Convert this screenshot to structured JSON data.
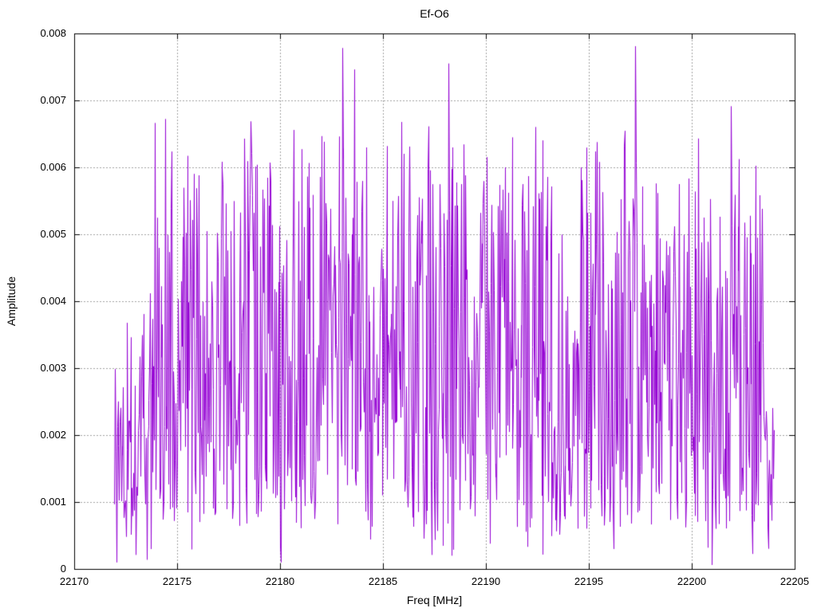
{
  "chart_data": {
    "type": "line",
    "style": "noisy-spectrum-trace",
    "title": "Ef-O6",
    "xlabel": "Freq [MHz]",
    "ylabel": "Amplitude",
    "xlim": [
      22170,
      22205
    ],
    "ylim": [
      0,
      0.008
    ],
    "grid": true,
    "legend": "none",
    "colors": {
      "series": "#9400d3",
      "grid": "#a0a0a0",
      "axis": "#000000",
      "background": "#ffffff"
    },
    "x_ticks": [
      {
        "v": 22170,
        "label": "22170"
      },
      {
        "v": 22175,
        "label": "22175"
      },
      {
        "v": 22180,
        "label": "22180"
      },
      {
        "v": 22185,
        "label": "22185"
      },
      {
        "v": 22190,
        "label": "22190"
      },
      {
        "v": 22195,
        "label": "22195"
      },
      {
        "v": 22200,
        "label": "22200"
      },
      {
        "v": 22205,
        "label": "22205"
      }
    ],
    "y_ticks": [
      {
        "v": 0,
        "label": "0"
      },
      {
        "v": 0.001,
        "label": "0.001"
      },
      {
        "v": 0.002,
        "label": "0.002"
      },
      {
        "v": 0.003,
        "label": "0.003"
      },
      {
        "v": 0.004,
        "label": "0.004"
      },
      {
        "v": 0.005,
        "label": "0.005"
      },
      {
        "v": 0.006,
        "label": "0.006"
      },
      {
        "v": 0.007,
        "label": "0.007"
      },
      {
        "v": 0.008,
        "label": "0.008"
      }
    ],
    "data_x_range": [
      22171.95,
      22204.0
    ],
    "peaks": [
      [
        22173.9,
        0.00666
      ],
      [
        22174.4,
        0.00672
      ],
      [
        22175.5,
        0.00617
      ],
      [
        22175.8,
        0.0059
      ],
      [
        22176.05,
        0.00588
      ],
      [
        22177.2,
        0.00598
      ],
      [
        22178.4,
        0.00609
      ],
      [
        22179.5,
        0.00607
      ],
      [
        22181.3,
        0.00586
      ],
      [
        22183.0,
        0.00778
      ],
      [
        22183.6,
        0.00746
      ],
      [
        22184.9,
        0.00478
      ],
      [
        22186.3,
        0.00631
      ],
      [
        22187.2,
        0.00661
      ],
      [
        22188.2,
        0.00755
      ],
      [
        22188.9,
        0.00634
      ],
      [
        22190.05,
        0.00615
      ],
      [
        22191.8,
        0.00575
      ],
      [
        22192.4,
        0.0066
      ],
      [
        22192.75,
        0.0064
      ],
      [
        22194.6,
        0.006
      ],
      [
        22196.7,
        0.00632
      ],
      [
        22197.25,
        0.00781
      ],
      [
        22199.4,
        0.00575
      ],
      [
        22200.3,
        0.00643
      ],
      [
        22201.9,
        0.00691
      ],
      [
        22203.4,
        0.00538
      ]
    ],
    "deep_dips": [
      [
        22172.05,
        0.0001
      ],
      [
        22180.05,
        0.0001
      ],
      [
        22188.35,
        0.0002
      ],
      [
        22196.2,
        0.0003
      ],
      [
        22201.0,
        6e-05
      ]
    ],
    "lulls": [
      [
        22184.2,
        22185.0,
        0.78
      ],
      [
        22193.2,
        22194.55,
        0.8
      ]
    ],
    "noise": {
      "seed": 1337,
      "points": 980,
      "freq_start": 22171.95,
      "freq_end": 22204.0,
      "base_min": 0.0006,
      "base_max": 0.0058,
      "spike_prob": 0.05,
      "spike_extra_max": 0.0009,
      "dip_prob": 0.035,
      "dip_min": 0.0002,
      "dip_max": 0.001,
      "start_taper_end": 22173.6,
      "start_scale": 0.62,
      "end_taper_start": 22203.55,
      "end_scale": 0.45
    }
  }
}
